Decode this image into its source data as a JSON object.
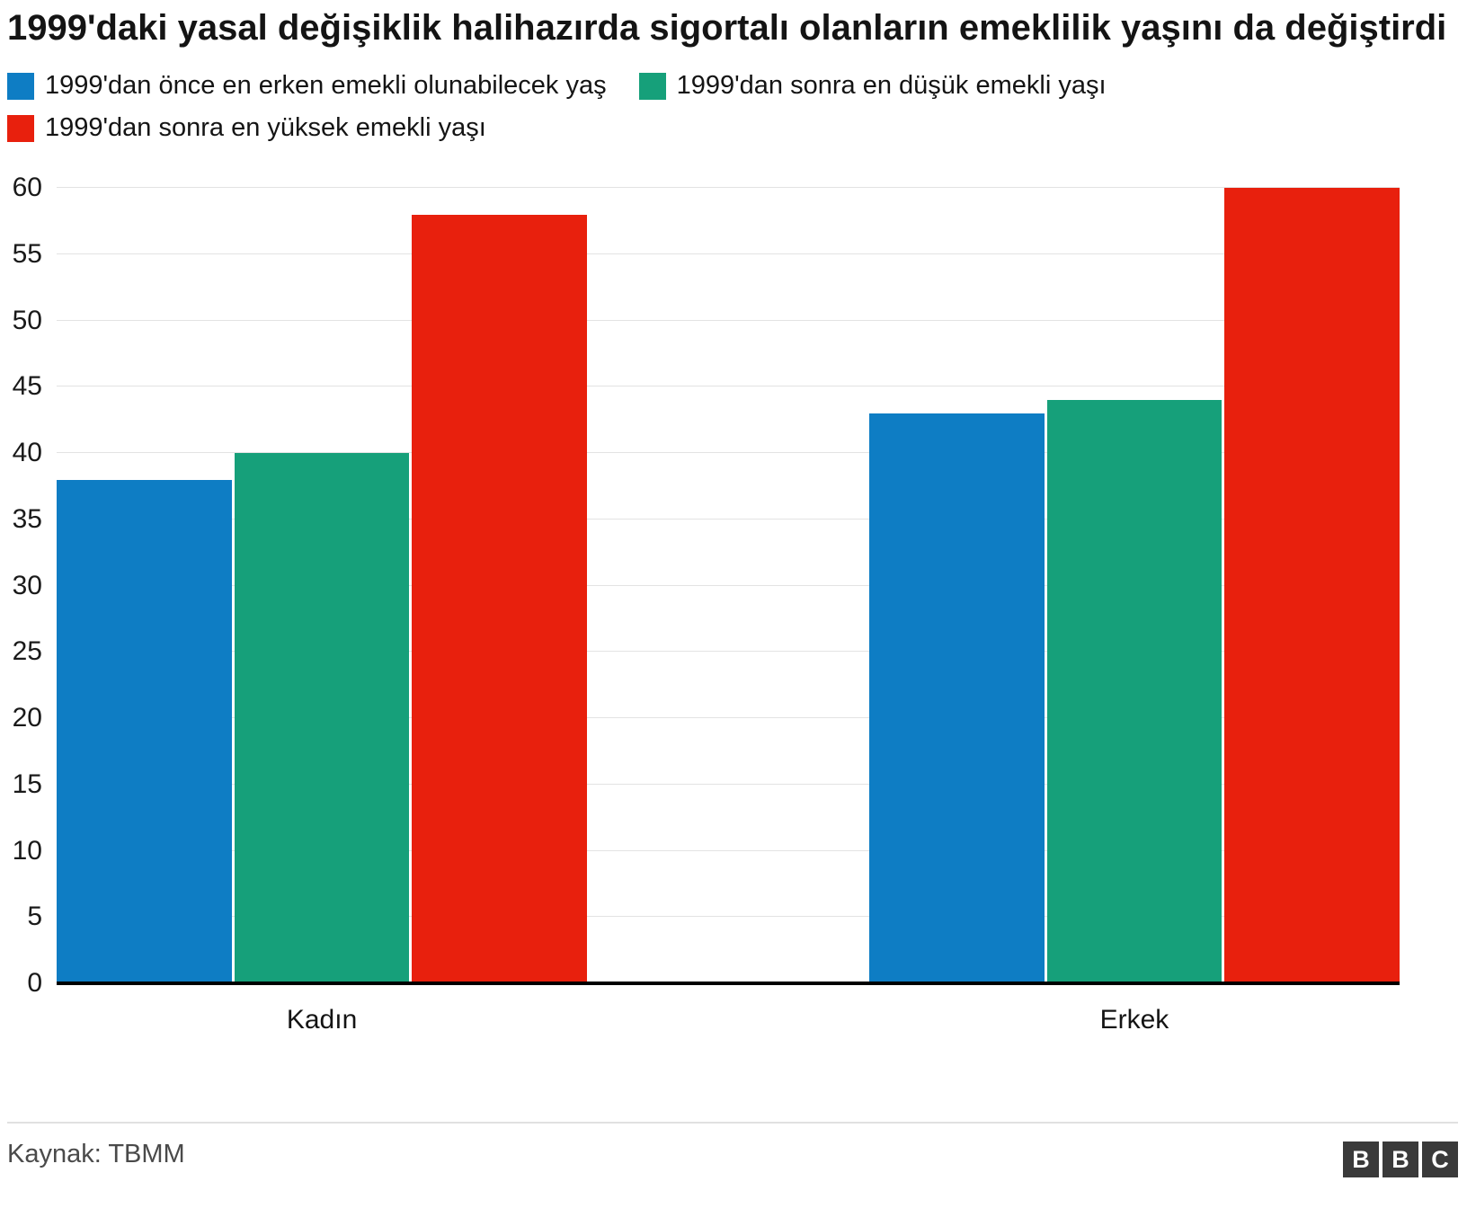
{
  "header": {
    "title": "1999'daki yasal değişiklik halihazırda sigortalı olanların emeklilik yaşını da değiştirdi"
  },
  "chart_data": {
    "type": "bar",
    "title": "1999'daki yasal değişiklik halihazırda sigortalı olanların emeklilik yaşını da değiştirdi",
    "categories": [
      "Kadın",
      "Erkek"
    ],
    "series": [
      {
        "name": "1999'dan önce en erken emekli olunabilecek yaş",
        "color": "#0e7dc4",
        "values": [
          38,
          43
        ]
      },
      {
        "name": "1999'dan sonra en düşük emekli yaşı",
        "color": "#16a07a",
        "values": [
          40,
          44
        ]
      },
      {
        "name": "1999'dan sonra en yüksek emekli yaşı",
        "color": "#e8200d",
        "values": [
          58,
          60
        ]
      }
    ],
    "xlabel": "",
    "ylabel": "",
    "ylim": [
      0,
      60
    ],
    "ytick_step": 5,
    "grid": "horizontal",
    "legend_position": "top"
  },
  "footer": {
    "source": "Kaynak: TBMM",
    "logo_letters": [
      "B",
      "B",
      "C"
    ]
  }
}
